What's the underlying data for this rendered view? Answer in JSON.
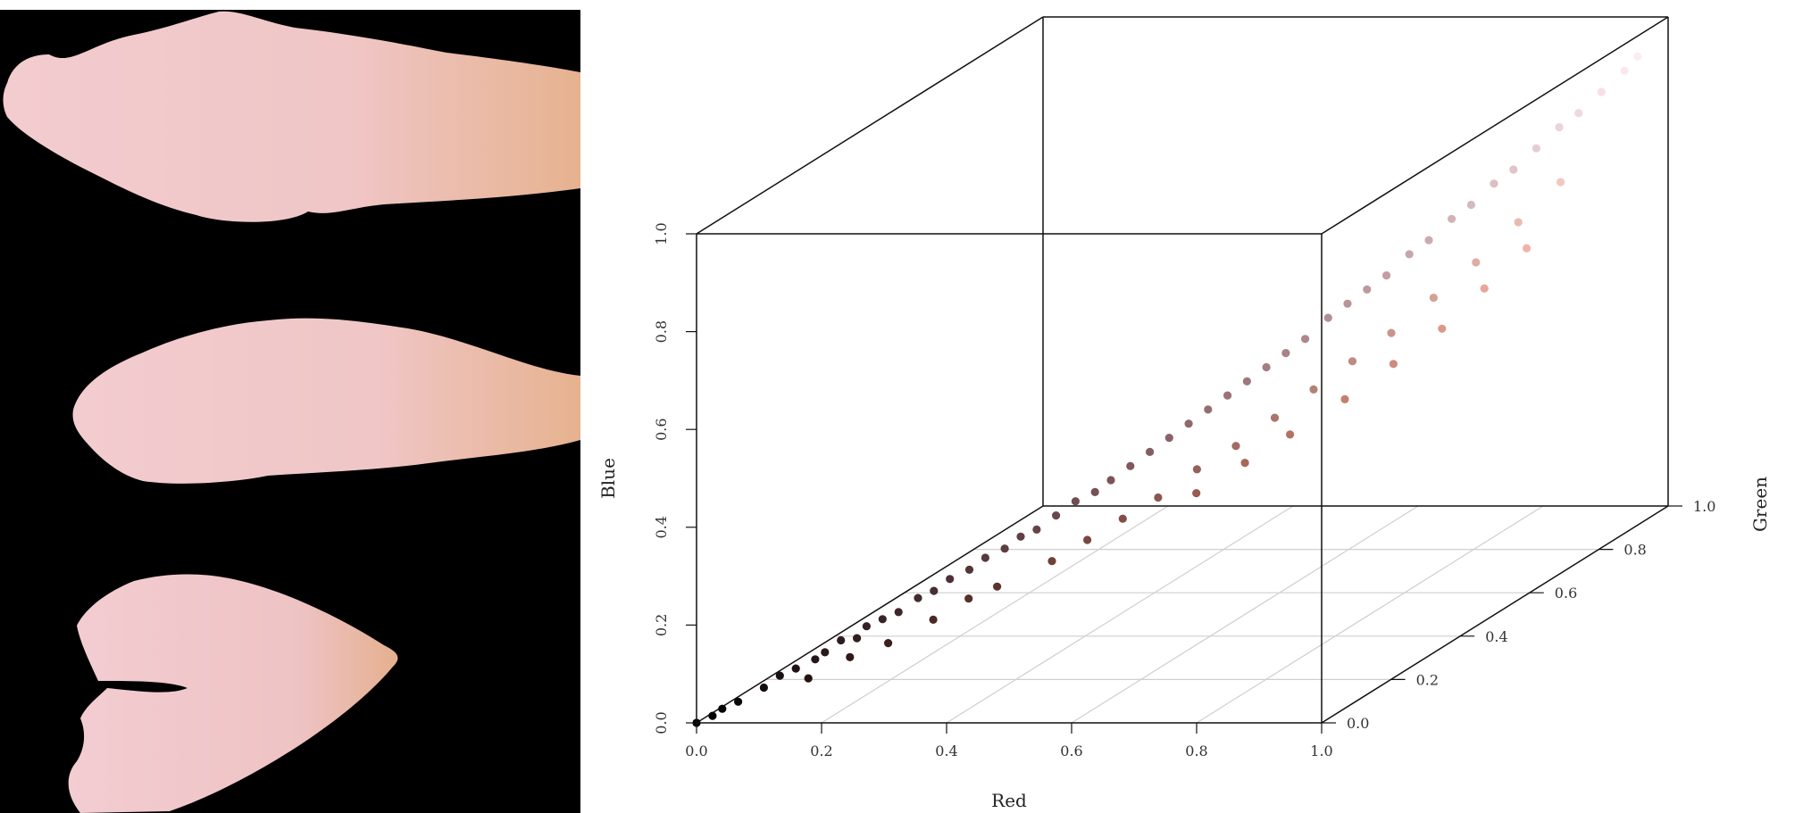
{
  "photo_panel": {
    "background": "#000000",
    "petal_color": "#f2c9cc",
    "petal_tint": "#e8b592",
    "petal_count": 3
  },
  "chart_data": {
    "type": "scatter",
    "title": "",
    "xlabel": "Red",
    "ylabel": "Blue",
    "zlabel": "Green",
    "x_axis": "Red",
    "y_axis": "Green",
    "z_axis": "Blue",
    "xlim": [
      0,
      1
    ],
    "ylim": [
      0,
      1
    ],
    "zlim": [
      0,
      1
    ],
    "x_ticks": [
      "0.0",
      "0.2",
      "0.4",
      "0.6",
      "0.8",
      "1.0"
    ],
    "y_ticks": [
      "0.0",
      "0.2",
      "0.4",
      "0.6",
      "0.8",
      "1.0"
    ],
    "z_ticks": [
      "0.0",
      "0.2",
      "0.4",
      "0.6",
      "0.8",
      "1.0"
    ],
    "grid": "floor",
    "box": true,
    "point_color": "RGB of each pixel",
    "series": [
      {
        "points": [
          [
            0.0,
            0.0,
            0.0
          ],
          [
            0.02,
            0.01,
            0.01
          ],
          [
            0.03,
            0.02,
            0.02
          ],
          [
            0.05,
            0.03,
            0.03
          ],
          [
            0.08,
            0.05,
            0.05
          ],
          [
            0.1,
            0.06,
            0.07
          ],
          [
            0.12,
            0.07,
            0.08
          ],
          [
            0.14,
            0.09,
            0.09
          ],
          [
            0.15,
            0.1,
            0.1
          ],
          [
            0.17,
            0.11,
            0.12
          ],
          [
            0.19,
            0.12,
            0.12
          ],
          [
            0.2,
            0.13,
            0.14
          ],
          [
            0.22,
            0.14,
            0.15
          ],
          [
            0.24,
            0.15,
            0.16
          ],
          [
            0.26,
            0.17,
            0.18
          ],
          [
            0.28,
            0.18,
            0.19
          ],
          [
            0.3,
            0.19,
            0.21
          ],
          [
            0.32,
            0.21,
            0.22
          ],
          [
            0.34,
            0.22,
            0.24
          ],
          [
            0.36,
            0.24,
            0.25
          ],
          [
            0.38,
            0.25,
            0.27
          ],
          [
            0.4,
            0.26,
            0.28
          ],
          [
            0.42,
            0.28,
            0.3
          ],
          [
            0.44,
            0.3,
            0.32
          ],
          [
            0.46,
            0.32,
            0.33
          ],
          [
            0.48,
            0.33,
            0.35
          ],
          [
            0.5,
            0.35,
            0.37
          ],
          [
            0.52,
            0.37,
            0.39
          ],
          [
            0.54,
            0.39,
            0.41
          ],
          [
            0.56,
            0.41,
            0.43
          ],
          [
            0.58,
            0.43,
            0.45
          ],
          [
            0.6,
            0.45,
            0.47
          ],
          [
            0.62,
            0.47,
            0.49
          ],
          [
            0.64,
            0.49,
            0.51
          ],
          [
            0.66,
            0.51,
            0.53
          ],
          [
            0.68,
            0.53,
            0.55
          ],
          [
            0.7,
            0.56,
            0.58
          ],
          [
            0.72,
            0.58,
            0.6
          ],
          [
            0.74,
            0.6,
            0.62
          ],
          [
            0.76,
            0.62,
            0.64
          ],
          [
            0.78,
            0.65,
            0.67
          ],
          [
            0.8,
            0.67,
            0.69
          ],
          [
            0.82,
            0.7,
            0.72
          ],
          [
            0.84,
            0.72,
            0.74
          ],
          [
            0.86,
            0.75,
            0.77
          ],
          [
            0.88,
            0.77,
            0.79
          ],
          [
            0.9,
            0.8,
            0.82
          ],
          [
            0.92,
            0.83,
            0.85
          ],
          [
            0.94,
            0.85,
            0.87
          ],
          [
            0.96,
            0.88,
            0.9
          ],
          [
            0.98,
            0.91,
            0.93
          ],
          [
            0.99,
            0.93,
            0.95
          ],
          [
            0.14,
            0.07,
            0.06
          ],
          [
            0.19,
            0.1,
            0.09
          ],
          [
            0.24,
            0.12,
            0.11
          ],
          [
            0.29,
            0.16,
            0.14
          ],
          [
            0.33,
            0.19,
            0.17
          ],
          [
            0.37,
            0.2,
            0.19
          ],
          [
            0.43,
            0.25,
            0.22
          ],
          [
            0.47,
            0.28,
            0.25
          ],
          [
            0.51,
            0.31,
            0.28
          ],
          [
            0.55,
            0.34,
            0.31
          ],
          [
            0.59,
            0.38,
            0.35
          ],
          [
            0.63,
            0.42,
            0.38
          ],
          [
            0.67,
            0.46,
            0.42
          ],
          [
            0.71,
            0.5,
            0.46
          ],
          [
            0.75,
            0.54,
            0.5
          ],
          [
            0.79,
            0.58,
            0.54
          ],
          [
            0.83,
            0.63,
            0.59
          ],
          [
            0.87,
            0.68,
            0.64
          ],
          [
            0.91,
            0.73,
            0.7
          ],
          [
            0.95,
            0.78,
            0.76
          ],
          [
            0.6,
            0.36,
            0.31
          ],
          [
            0.65,
            0.41,
            0.35
          ],
          [
            0.7,
            0.45,
            0.39
          ],
          [
            0.76,
            0.5,
            0.44
          ],
          [
            0.81,
            0.55,
            0.49
          ],
          [
            0.86,
            0.6,
            0.54
          ],
          [
            0.9,
            0.65,
            0.6
          ],
          [
            0.94,
            0.7,
            0.66
          ]
        ]
      }
    ]
  }
}
